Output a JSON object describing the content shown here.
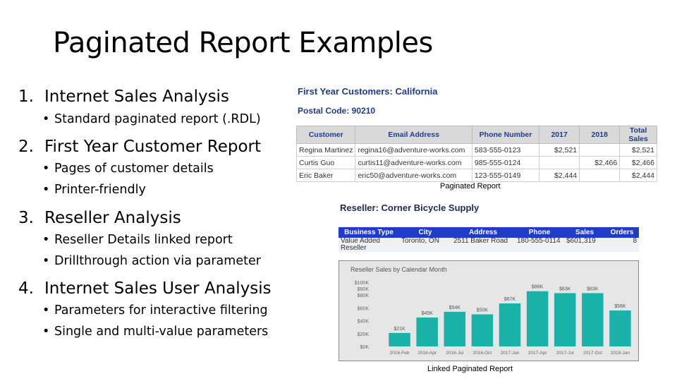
{
  "slide": {
    "title": "Paginated Report Examples"
  },
  "outline": [
    {
      "number": "1.",
      "label": "Internet Sales Analysis",
      "subs": [
        "Standard paginated report (.RDL)"
      ]
    },
    {
      "number": "2.",
      "label": "First Year Customer Report",
      "subs": [
        "Pages of customer details",
        "Printer-friendly"
      ]
    },
    {
      "number": "3.",
      "label": "Reseller Analysis",
      "subs": [
        "Reseller Details linked report",
        "Drillthrough action via parameter"
      ]
    },
    {
      "number": "4.",
      "label": "Internet Sales User Analysis",
      "subs": [
        "Parameters for interactive filtering",
        "Single and multi-value parameters"
      ]
    }
  ],
  "bullet": "•",
  "report1": {
    "title": "First Year Customers: California",
    "postal": "Postal Code: 90210",
    "columns": [
      "Customer",
      "Email Address",
      "Phone Number",
      "2017",
      "2018",
      "Total Sales"
    ],
    "rows": [
      [
        "Regina Martinez",
        "regina16@adventure-works.com",
        "583-555-0123",
        "$2,521",
        "",
        "$2,521"
      ],
      [
        "Curtis Guo",
        "curtis11@adventure-works.com",
        "985-555-0124",
        "",
        "$2,466",
        "$2,466"
      ],
      [
        "Eric Baker",
        "eric50@adventure-works.com",
        "123-555-0149",
        "$2,444",
        "",
        "$2,444"
      ]
    ],
    "caption": "Paginated Report"
  },
  "report2": {
    "title": "Reseller: Corner Bicycle Supply",
    "columns": [
      "Business Type",
      "City",
      "Address",
      "Phone",
      "Sales",
      "Orders"
    ],
    "row": [
      "Value Added Reseller",
      "Toronto, ON",
      "2511 Baker Road",
      "180-555-0114",
      "$601,319",
      "8"
    ],
    "caption": "Linked Paginated Report"
  },
  "chart_data": {
    "type": "bar",
    "title": "Reseller Sales by Calendar Month",
    "categories": [
      "2016-Feb",
      "2016-Apr",
      "2016-Jul",
      "2016-Oct",
      "2017-Jan",
      "2017-Apr",
      "2017-Jul",
      "2017-Oct",
      "2018-Jan"
    ],
    "values": [
      21,
      45,
      54,
      50,
      67,
      86,
      83,
      83,
      56
    ],
    "data_labels": [
      "$21K",
      "$45K",
      "$54K",
      "$50K",
      "$67K",
      "$86K",
      "$83K",
      "$83K",
      "$56K"
    ],
    "y_ticks": [
      "$0K",
      "$20K",
      "$40K",
      "$60K",
      "$80K",
      "$90K",
      "$100K"
    ],
    "ylim": [
      0,
      100
    ],
    "color": "#1ab2a8",
    "grid": false
  }
}
